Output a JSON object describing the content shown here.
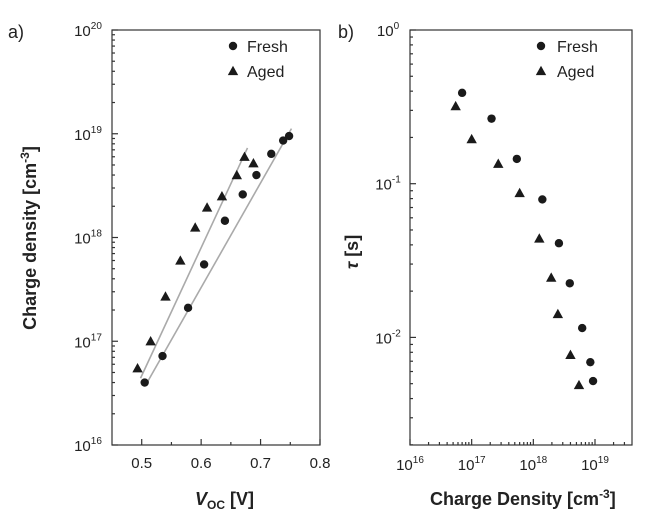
{
  "chart_data": [
    {
      "panel": "a)",
      "type": "scatter",
      "xlabel_main": "V",
      "xlabel_sub": "OC",
      "xlabel_unit": " [V]",
      "ylabel": "Charge density [cm",
      "ylabel_sup": "-3",
      "ylabel_end": "]",
      "xlim": [
        0.45,
        0.8
      ],
      "ylim_log10": [
        16,
        20
      ],
      "yscale": "log",
      "x_ticks": [
        {
          "value": 0.5,
          "label": "0.5"
        },
        {
          "value": 0.6,
          "label": "0.6"
        },
        {
          "value": 0.7,
          "label": "0.7"
        },
        {
          "value": 0.8,
          "label": "0.8"
        }
      ],
      "y_ticks": [
        {
          "exp": 16,
          "base": "10",
          "sup": "16"
        },
        {
          "exp": 17,
          "base": "10",
          "sup": "17"
        },
        {
          "exp": 18,
          "base": "10",
          "sup": "18"
        },
        {
          "exp": 19,
          "base": "10",
          "sup": "19"
        },
        {
          "exp": 20,
          "base": "10",
          "sup": "20"
        }
      ],
      "legend": [
        "Fresh",
        "Aged"
      ],
      "legend_position": "top-right",
      "series": [
        {
          "name": "Fresh",
          "marker": "circle",
          "x": [
            0.505,
            0.535,
            0.578,
            0.605,
            0.64,
            0.67,
            0.693,
            0.718,
            0.738,
            0.748
          ],
          "y": [
            4e+16,
            7.2e+16,
            2.1e+17,
            5.5e+17,
            1.45e+18,
            2.6e+18,
            4e+18,
            6.4e+18,
            8.6e+18,
            9.5e+18
          ]
        },
        {
          "name": "Aged",
          "marker": "triangle",
          "x": [
            0.493,
            0.515,
            0.54,
            0.565,
            0.59,
            0.61,
            0.635,
            0.66,
            0.673,
            0.688
          ],
          "y": [
            5.5e+16,
            1e+17,
            2.7e+17,
            6e+17,
            1.25e+18,
            1.95e+18,
            2.5e+18,
            4e+18,
            6e+18,
            5.2e+18
          ]
        }
      ],
      "fit_lines": [
        {
          "series": "Fresh",
          "x": [
            0.508,
            0.752
          ],
          "y": [
            3.9e+16,
            1.12e+19
          ]
        },
        {
          "series": "Aged",
          "x": [
            0.498,
            0.678
          ],
          "y": [
            4.4e+16,
            7.3e+18
          ]
        }
      ]
    },
    {
      "panel": "b)",
      "type": "scatter",
      "xlabel": "Charge Density [cm",
      "xlabel_sup": "-3",
      "xlabel_end": "]",
      "ylabel_sym": "τ",
      "ylabel_unit": " [s]",
      "xscale": "log",
      "yscale": "log",
      "xlim_log10": [
        16,
        19.6
      ],
      "ylim_log10": [
        -2.7,
        0
      ],
      "x_ticks": [
        {
          "exp": 16,
          "base": "10",
          "sup": "16"
        },
        {
          "exp": 17,
          "base": "10",
          "sup": "17"
        },
        {
          "exp": 18,
          "base": "10",
          "sup": "18"
        },
        {
          "exp": 19,
          "base": "10",
          "sup": "19"
        }
      ],
      "y_ticks": [
        {
          "exp": 0,
          "base": "10",
          "sup": "0"
        },
        {
          "exp": -1,
          "base": "10",
          "sup": "-1"
        },
        {
          "exp": -2,
          "base": "10",
          "sup": "-2"
        }
      ],
      "legend": [
        "Fresh",
        "Aged"
      ],
      "legend_position": "top-right",
      "series": [
        {
          "name": "Fresh",
          "marker": "circle",
          "x": [
            7e+16,
            2.1e+17,
            5.4e+17,
            1.4e+18,
            2.6e+18,
            3.9e+18,
            6.2e+18,
            8.4e+18,
            9.3e+18
          ],
          "y": [
            0.39,
            0.265,
            0.145,
            0.079,
            0.041,
            0.0225,
            0.0115,
            0.0069,
            0.0052
          ]
        },
        {
          "name": "Aged",
          "marker": "triangle",
          "x": [
            5.5e+16,
            1e+17,
            2.7e+17,
            6e+17,
            1.25e+18,
            1.95e+18,
            2.5e+18,
            4e+18,
            5.5e+18
          ],
          "y": [
            0.32,
            0.195,
            0.135,
            0.087,
            0.044,
            0.0245,
            0.0142,
            0.0077,
            0.0049
          ]
        }
      ]
    }
  ]
}
